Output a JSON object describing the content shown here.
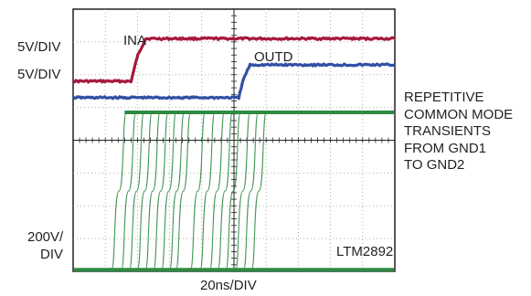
{
  "chart_data": {
    "type": "line",
    "title": "",
    "xlabel": "20ns/DIV",
    "x_unit_per_div": "20ns",
    "x_divisions": 10,
    "y_divisions": 8,
    "grid": true,
    "scale_labels": [
      "5V/DIV",
      "5V/DIV",
      "200V/ DIV"
    ],
    "annotation_lines": [
      "REPETITIVE",
      "COMMON MODE",
      "TRANSIENTS",
      "FROM GND1",
      "TO GND2"
    ],
    "part_number": "LTM2892",
    "series": [
      {
        "name": "INA",
        "color": "#a6193c",
        "x_ns": [
          0,
          36,
          40,
          45,
          200
        ],
        "y_div": [
          5.8,
          5.8,
          6.56,
          7.1,
          7.1
        ]
      },
      {
        "name": "OUTD",
        "color": "#3250a4",
        "x_ns": [
          0,
          103,
          106,
          110,
          200
        ],
        "y_div": [
          5.3,
          5.3,
          5.88,
          6.3,
          6.3
        ]
      }
    ],
    "transients": {
      "color": "#2e8b42",
      "low_y_div": 0.05,
      "high_y_div": 4.85,
      "rise_time_ns": 9,
      "start_ns": [
        24,
        30,
        35,
        40,
        45,
        50,
        55,
        60,
        64,
        73,
        79,
        85,
        90,
        95,
        101,
        106,
        111
      ]
    }
  },
  "labels": {
    "scale_top": "5V/DIV",
    "scale_mid": "5V/DIV",
    "scale_bottom_1": "200V/",
    "scale_bottom_2": "DIV",
    "ina": "INA",
    "outd": "OUTD",
    "part": "LTM2892",
    "xunit": "20ns/DIV",
    "note": [
      "REPETITIVE",
      "COMMON MODE",
      "TRANSIENTS",
      "FROM GND1",
      "TO GND2"
    ]
  }
}
